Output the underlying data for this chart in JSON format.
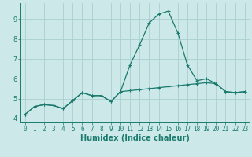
{
  "xlabel": "Humidex (Indice chaleur)",
  "ylabel": "",
  "x": [
    0,
    1,
    2,
    3,
    4,
    5,
    6,
    7,
    8,
    9,
    10,
    11,
    12,
    13,
    14,
    15,
    16,
    17,
    18,
    19,
    20,
    21,
    22,
    23
  ],
  "line1_y": [
    4.2,
    4.6,
    4.7,
    4.65,
    4.5,
    4.9,
    5.3,
    5.15,
    5.15,
    4.85,
    5.35,
    6.7,
    7.7,
    8.8,
    9.25,
    9.4,
    8.3,
    6.7,
    5.9,
    6.0,
    5.75,
    5.35,
    5.3,
    5.35
  ],
  "line2_y": [
    4.2,
    4.6,
    4.7,
    4.65,
    4.5,
    4.9,
    5.3,
    5.15,
    5.15,
    4.85,
    5.35,
    5.4,
    5.45,
    5.5,
    5.55,
    5.6,
    5.65,
    5.7,
    5.75,
    5.8,
    5.75,
    5.35,
    5.3,
    5.35
  ],
  "line_color": "#1a7a6e",
  "bg_color": "#cce8e8",
  "grid_color": "#aacfcf",
  "ylim": [
    3.8,
    9.8
  ],
  "xlim": [
    -0.5,
    23.5
  ],
  "yticks": [
    4,
    5,
    6,
    7,
    8,
    9
  ],
  "xticks": [
    0,
    1,
    2,
    3,
    4,
    5,
    6,
    7,
    8,
    9,
    10,
    11,
    12,
    13,
    14,
    15,
    16,
    17,
    18,
    19,
    20,
    21,
    22,
    23
  ],
  "tick_fontsize": 5.5,
  "xlabel_fontsize": 7,
  "marker_size": 3,
  "linewidth": 0.9
}
